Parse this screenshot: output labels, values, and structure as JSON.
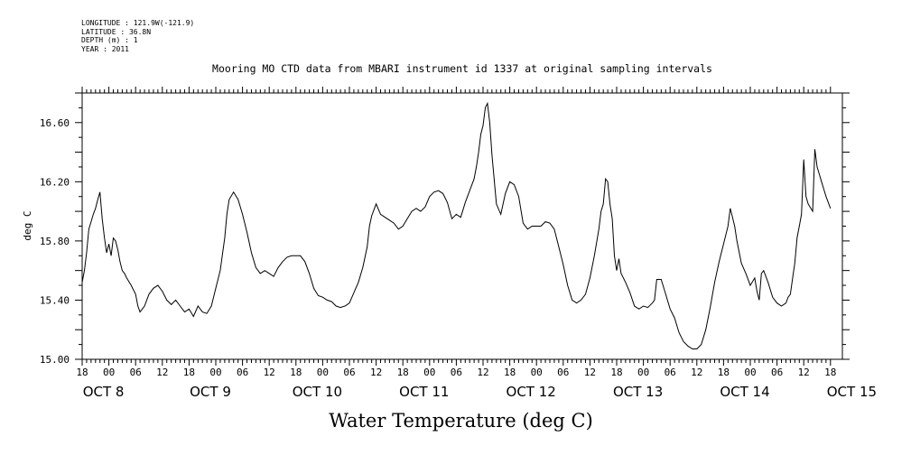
{
  "meta_lines": [
    "LONGITUDE : 121.9W(-121.9)",
    "LATITUDE : 36.8N",
    "DEPTH (m) : 1",
    "YEAR : 2011"
  ],
  "chart_data": {
    "type": "line",
    "title": "Mooring MO CTD data from MBARI instrument id 1337 at original sampling intervals",
    "xlabel": "Water Temperature (deg C)",
    "ylabel": "deg C",
    "ylim": [
      15.0,
      16.8
    ],
    "yticks": [
      "15.00",
      "15.40",
      "15.80",
      "16.20",
      "16.60"
    ],
    "x_tick_hours": [
      "18",
      "00",
      "06",
      "12",
      "18",
      "00",
      "06",
      "12",
      "18",
      "00",
      "06",
      "12",
      "18",
      "00",
      "06",
      "12",
      "18",
      "00",
      "06",
      "12",
      "18",
      "00",
      "06",
      "12",
      "18",
      "00",
      "06",
      "12",
      "18"
    ],
    "x_day_labels": [
      "OCT  8",
      "OCT  9",
      "OCT 10",
      "OCT 11",
      "OCT 12",
      "OCT 13",
      "OCT 14",
      "OCT 15"
    ],
    "xlim_hours": [
      0,
      168
    ],
    "x_units_note": "hours since Oct 7 18:00",
    "series": [
      {
        "values": [
          [
            0.0,
            15.52
          ],
          [
            0.5,
            15.6
          ],
          [
            1.0,
            15.72
          ],
          [
            1.5,
            15.88
          ],
          [
            2.0,
            15.93
          ],
          [
            2.5,
            15.98
          ],
          [
            3.0,
            16.02
          ],
          [
            3.5,
            16.08
          ],
          [
            4.0,
            16.13
          ],
          [
            4.5,
            15.95
          ],
          [
            5.0,
            15.82
          ],
          [
            5.5,
            15.72
          ],
          [
            6.0,
            15.78
          ],
          [
            6.5,
            15.7
          ],
          [
            7.0,
            15.82
          ],
          [
            7.5,
            15.8
          ],
          [
            8.0,
            15.74
          ],
          [
            8.5,
            15.66
          ],
          [
            9.0,
            15.6
          ],
          [
            9.5,
            15.58
          ],
          [
            10.0,
            15.55
          ],
          [
            11.0,
            15.5
          ],
          [
            12.0,
            15.44
          ],
          [
            12.5,
            15.36
          ],
          [
            13.0,
            15.32
          ],
          [
            14.0,
            15.36
          ],
          [
            15.0,
            15.44
          ],
          [
            16.0,
            15.48
          ],
          [
            17.0,
            15.5
          ],
          [
            18.0,
            15.46
          ],
          [
            19.0,
            15.4
          ],
          [
            20.0,
            15.37
          ],
          [
            21.0,
            15.4
          ],
          [
            22.0,
            15.36
          ],
          [
            23.0,
            15.32
          ],
          [
            24.0,
            15.34
          ],
          [
            25.0,
            15.29
          ],
          [
            26.0,
            15.36
          ],
          [
            27.0,
            15.32
          ],
          [
            28.0,
            15.31
          ],
          [
            29.0,
            15.36
          ],
          [
            30.0,
            15.48
          ],
          [
            31.0,
            15.6
          ],
          [
            32.0,
            15.82
          ],
          [
            32.5,
            15.98
          ],
          [
            33.0,
            16.08
          ],
          [
            34.0,
            16.13
          ],
          [
            35.0,
            16.08
          ],
          [
            36.0,
            15.98
          ],
          [
            37.0,
            15.86
          ],
          [
            38.0,
            15.72
          ],
          [
            39.0,
            15.62
          ],
          [
            40.0,
            15.58
          ],
          [
            41.0,
            15.6
          ],
          [
            42.0,
            15.58
          ],
          [
            43.0,
            15.56
          ],
          [
            44.0,
            15.62
          ],
          [
            45.0,
            15.66
          ],
          [
            46.0,
            15.69
          ],
          [
            47.0,
            15.7
          ],
          [
            48.0,
            15.7
          ],
          [
            49.0,
            15.7
          ],
          [
            50.0,
            15.66
          ],
          [
            51.0,
            15.58
          ],
          [
            52.0,
            15.48
          ],
          [
            53.0,
            15.43
          ],
          [
            54.0,
            15.42
          ],
          [
            55.0,
            15.4
          ],
          [
            56.0,
            15.39
          ],
          [
            57.0,
            15.36
          ],
          [
            58.0,
            15.35
          ],
          [
            59.0,
            15.36
          ],
          [
            60.0,
            15.38
          ],
          [
            61.0,
            15.45
          ],
          [
            62.0,
            15.52
          ],
          [
            63.0,
            15.62
          ],
          [
            64.0,
            15.76
          ],
          [
            64.5,
            15.9
          ],
          [
            65.0,
            15.97
          ],
          [
            66.0,
            16.05
          ],
          [
            67.0,
            15.98
          ],
          [
            68.0,
            15.96
          ],
          [
            69.0,
            15.94
          ],
          [
            70.0,
            15.92
          ],
          [
            71.0,
            15.88
          ],
          [
            72.0,
            15.9
          ],
          [
            73.0,
            15.95
          ],
          [
            74.0,
            16.0
          ],
          [
            75.0,
            16.02
          ],
          [
            76.0,
            16.0
          ],
          [
            77.0,
            16.03
          ],
          [
            78.0,
            16.1
          ],
          [
            79.0,
            16.13
          ],
          [
            80.0,
            16.14
          ],
          [
            81.0,
            16.12
          ],
          [
            82.0,
            16.06
          ],
          [
            83.0,
            15.95
          ],
          [
            84.0,
            15.98
          ],
          [
            85.0,
            15.96
          ],
          [
            86.0,
            16.06
          ],
          [
            87.0,
            16.14
          ],
          [
            88.0,
            16.22
          ],
          [
            88.5,
            16.3
          ],
          [
            89.0,
            16.4
          ],
          [
            89.5,
            16.52
          ],
          [
            90.0,
            16.58
          ],
          [
            90.5,
            16.7
          ],
          [
            91.0,
            16.73
          ],
          [
            91.5,
            16.6
          ],
          [
            92.0,
            16.38
          ],
          [
            93.0,
            16.05
          ],
          [
            94.0,
            15.98
          ],
          [
            95.0,
            16.12
          ],
          [
            96.0,
            16.2
          ],
          [
            97.0,
            16.18
          ],
          [
            98.0,
            16.1
          ],
          [
            99.0,
            15.92
          ],
          [
            100.0,
            15.88
          ],
          [
            101.0,
            15.9
          ],
          [
            102.0,
            15.9
          ],
          [
            103.0,
            15.9
          ],
          [
            104.0,
            15.93
          ],
          [
            105.0,
            15.92
          ],
          [
            106.0,
            15.88
          ],
          [
            107.0,
            15.76
          ],
          [
            108.0,
            15.64
          ],
          [
            109.0,
            15.5
          ],
          [
            110.0,
            15.4
          ],
          [
            111.0,
            15.38
          ],
          [
            112.0,
            15.4
          ],
          [
            113.0,
            15.44
          ],
          [
            114.0,
            15.55
          ],
          [
            115.0,
            15.7
          ],
          [
            116.0,
            15.88
          ],
          [
            116.5,
            16.0
          ],
          [
            117.0,
            16.05
          ],
          [
            117.5,
            16.22
          ],
          [
            118.0,
            16.2
          ],
          [
            118.5,
            16.05
          ],
          [
            119.0,
            15.95
          ],
          [
            119.5,
            15.7
          ],
          [
            120.0,
            15.6
          ],
          [
            120.5,
            15.68
          ],
          [
            121.0,
            15.58
          ],
          [
            122.0,
            15.52
          ],
          [
            123.0,
            15.45
          ],
          [
            124.0,
            15.36
          ],
          [
            125.0,
            15.34
          ],
          [
            126.0,
            15.36
          ],
          [
            127.0,
            15.35
          ],
          [
            128.0,
            15.38
          ],
          [
            128.5,
            15.4
          ],
          [
            129.0,
            15.54
          ],
          [
            130.0,
            15.54
          ],
          [
            131.0,
            15.44
          ],
          [
            132.0,
            15.34
          ],
          [
            133.0,
            15.28
          ],
          [
            134.0,
            15.18
          ],
          [
            135.0,
            15.12
          ],
          [
            136.0,
            15.09
          ],
          [
            137.0,
            15.07
          ],
          [
            138.0,
            15.07
          ],
          [
            139.0,
            15.1
          ],
          [
            140.0,
            15.2
          ],
          [
            141.0,
            15.35
          ],
          [
            142.0,
            15.52
          ],
          [
            143.0,
            15.66
          ],
          [
            144.0,
            15.78
          ],
          [
            145.0,
            15.9
          ],
          [
            145.5,
            16.02
          ],
          [
            146.0,
            15.96
          ],
          [
            146.5,
            15.9
          ],
          [
            147.0,
            15.8
          ],
          [
            148.0,
            15.65
          ],
          [
            149.0,
            15.58
          ],
          [
            150.0,
            15.5
          ],
          [
            151.0,
            15.55
          ],
          [
            151.5,
            15.46
          ],
          [
            152.0,
            15.4
          ],
          [
            152.5,
            15.58
          ],
          [
            153.0,
            15.6
          ],
          [
            154.0,
            15.52
          ],
          [
            155.0,
            15.42
          ],
          [
            156.0,
            15.38
          ],
          [
            157.0,
            15.36
          ],
          [
            158.0,
            15.38
          ],
          [
            158.5,
            15.42
          ],
          [
            159.0,
            15.44
          ],
          [
            159.5,
            15.55
          ],
          [
            160.0,
            15.65
          ],
          [
            160.5,
            15.82
          ],
          [
            161.0,
            15.9
          ],
          [
            161.5,
            15.98
          ],
          [
            162.0,
            16.35
          ],
          [
            162.5,
            16.1
          ],
          [
            163.0,
            16.05
          ],
          [
            164.0,
            16.0
          ],
          [
            164.5,
            16.42
          ],
          [
            165.0,
            16.3
          ],
          [
            165.5,
            16.25
          ],
          [
            166.0,
            16.2
          ],
          [
            166.5,
            16.15
          ],
          [
            167.0,
            16.1
          ],
          [
            168.0,
            16.02
          ]
        ]
      }
    ]
  }
}
